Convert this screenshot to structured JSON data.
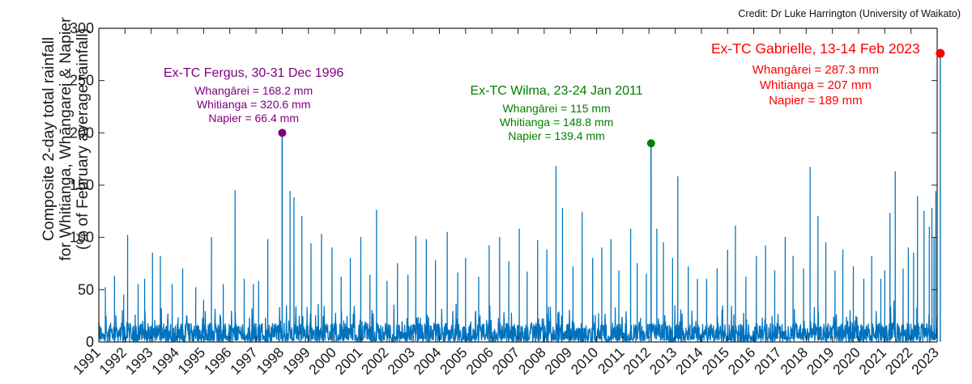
{
  "credit": "Credit: Dr Luke Harrington (University of Waikato)",
  "chart_data": {
    "type": "line",
    "title": "",
    "ylabel_lines": [
      "Composite 2-day total rainfall",
      "for Whitianga, Whāngarei & Napier",
      "(% of February average rainfall)"
    ],
    "xlabel": "",
    "x_ticks": [
      "1991",
      "1992",
      "1993",
      "1994",
      "1995",
      "1996",
      "1997",
      "1998",
      "1999",
      "2000",
      "2001",
      "2002",
      "2003",
      "2004",
      "2005",
      "2006",
      "2007",
      "2008",
      "2009",
      "2010",
      "2011",
      "2012",
      "2013",
      "2014",
      "2015",
      "2016",
      "2017",
      "2018",
      "2019",
      "2020",
      "2021",
      "2022",
      "2023"
    ],
    "xlim": [
      1991,
      2023
    ],
    "ylim": [
      0,
      300
    ],
    "y_ticks": [
      0,
      50,
      100,
      150,
      200,
      250,
      300
    ],
    "series_color": "#0072bd",
    "noise_level": 18,
    "peaks": [
      {
        "x": 1991.25,
        "y": 52
      },
      {
        "x": 1991.6,
        "y": 63
      },
      {
        "x": 1991.95,
        "y": 45
      },
      {
        "x": 1992.1,
        "y": 102
      },
      {
        "x": 1992.5,
        "y": 55
      },
      {
        "x": 1992.75,
        "y": 60
      },
      {
        "x": 1993.05,
        "y": 85
      },
      {
        "x": 1993.35,
        "y": 82
      },
      {
        "x": 1993.8,
        "y": 55
      },
      {
        "x": 1994.2,
        "y": 70
      },
      {
        "x": 1994.7,
        "y": 52
      },
      {
        "x": 1995.0,
        "y": 40
      },
      {
        "x": 1995.3,
        "y": 100
      },
      {
        "x": 1995.75,
        "y": 55
      },
      {
        "x": 1996.2,
        "y": 145
      },
      {
        "x": 1996.55,
        "y": 60
      },
      {
        "x": 1996.9,
        "y": 55
      },
      {
        "x": 1997.1,
        "y": 58
      },
      {
        "x": 1997.45,
        "y": 98
      },
      {
        "x": 1998.0,
        "y": 200
      },
      {
        "x": 1998.3,
        "y": 144
      },
      {
        "x": 1998.45,
        "y": 138
      },
      {
        "x": 1998.75,
        "y": 120
      },
      {
        "x": 1999.1,
        "y": 94
      },
      {
        "x": 1999.5,
        "y": 103
      },
      {
        "x": 1999.9,
        "y": 90
      },
      {
        "x": 2000.25,
        "y": 62
      },
      {
        "x": 2000.6,
        "y": 80
      },
      {
        "x": 2001.0,
        "y": 100
      },
      {
        "x": 2001.35,
        "y": 64
      },
      {
        "x": 2001.6,
        "y": 126
      },
      {
        "x": 2002.0,
        "y": 58
      },
      {
        "x": 2002.4,
        "y": 75
      },
      {
        "x": 2002.8,
        "y": 64
      },
      {
        "x": 2003.1,
        "y": 101
      },
      {
        "x": 2003.5,
        "y": 98
      },
      {
        "x": 2003.85,
        "y": 78
      },
      {
        "x": 2004.3,
        "y": 105
      },
      {
        "x": 2004.7,
        "y": 66
      },
      {
        "x": 2005.0,
        "y": 80
      },
      {
        "x": 2005.5,
        "y": 62
      },
      {
        "x": 2005.9,
        "y": 92
      },
      {
        "x": 2006.3,
        "y": 100
      },
      {
        "x": 2006.65,
        "y": 77
      },
      {
        "x": 2007.05,
        "y": 108
      },
      {
        "x": 2007.35,
        "y": 67
      },
      {
        "x": 2007.75,
        "y": 97
      },
      {
        "x": 2008.1,
        "y": 88
      },
      {
        "x": 2008.45,
        "y": 168
      },
      {
        "x": 2008.7,
        "y": 128
      },
      {
        "x": 2009.1,
        "y": 72
      },
      {
        "x": 2009.45,
        "y": 124
      },
      {
        "x": 2009.85,
        "y": 80
      },
      {
        "x": 2010.2,
        "y": 90
      },
      {
        "x": 2010.55,
        "y": 98
      },
      {
        "x": 2010.85,
        "y": 68
      },
      {
        "x": 2011.3,
        "y": 108
      },
      {
        "x": 2011.55,
        "y": 75
      },
      {
        "x": 2011.9,
        "y": 65
      },
      {
        "x": 2012.08,
        "y": 190
      },
      {
        "x": 2012.3,
        "y": 108
      },
      {
        "x": 2012.55,
        "y": 95
      },
      {
        "x": 2012.9,
        "y": 80
      },
      {
        "x": 2013.1,
        "y": 158
      },
      {
        "x": 2013.5,
        "y": 72
      },
      {
        "x": 2013.85,
        "y": 60
      },
      {
        "x": 2014.2,
        "y": 60
      },
      {
        "x": 2014.6,
        "y": 70
      },
      {
        "x": 2015.0,
        "y": 88
      },
      {
        "x": 2015.3,
        "y": 111
      },
      {
        "x": 2015.7,
        "y": 62
      },
      {
        "x": 2016.1,
        "y": 82
      },
      {
        "x": 2016.45,
        "y": 92
      },
      {
        "x": 2016.8,
        "y": 68
      },
      {
        "x": 2017.2,
        "y": 100
      },
      {
        "x": 2017.5,
        "y": 82
      },
      {
        "x": 2017.9,
        "y": 70
      },
      {
        "x": 2018.15,
        "y": 167
      },
      {
        "x": 2018.45,
        "y": 120
      },
      {
        "x": 2018.75,
        "y": 95
      },
      {
        "x": 2019.1,
        "y": 68
      },
      {
        "x": 2019.4,
        "y": 88
      },
      {
        "x": 2019.8,
        "y": 72
      },
      {
        "x": 2020.2,
        "y": 60
      },
      {
        "x": 2020.5,
        "y": 82
      },
      {
        "x": 2020.85,
        "y": 60
      },
      {
        "x": 2021.0,
        "y": 68
      },
      {
        "x": 2021.2,
        "y": 123
      },
      {
        "x": 2021.4,
        "y": 163
      },
      {
        "x": 2021.7,
        "y": 70
      },
      {
        "x": 2021.9,
        "y": 90
      },
      {
        "x": 2022.1,
        "y": 85
      },
      {
        "x": 2022.25,
        "y": 139
      },
      {
        "x": 2022.5,
        "y": 125
      },
      {
        "x": 2022.7,
        "y": 110
      },
      {
        "x": 2022.8,
        "y": 128
      },
      {
        "x": 2022.88,
        "y": 100
      },
      {
        "x": 2022.95,
        "y": 144
      },
      {
        "x": 2023.12,
        "y": 276
      }
    ],
    "events": [
      {
        "x": 1998.0,
        "y": 200,
        "color": "#800080",
        "title": "Ex-TC Fergus, 30-31 Dec 1996",
        "lines": [
          "Whangārei = 168.2 mm",
          "Whitianga = 320.6 mm",
          "Napier = 66.4 mm"
        ]
      },
      {
        "x": 2012.08,
        "y": 190,
        "color": "#008000",
        "title": "Ex-TC Wilma, 23-24 Jan 2011",
        "lines": [
          "Whangārei = 115 mm",
          "Whitianga = 148.8 mm",
          "Napier = 139.4 mm"
        ]
      },
      {
        "x": 2023.12,
        "y": 276,
        "color": "#ff0000",
        "title": "Ex-TC Gabrielle, 13-14 Feb 2023",
        "lines": [
          "Whangārei = 287.3 mm",
          "Whitianga = 207 mm",
          "Napier = 189 mm"
        ]
      }
    ]
  }
}
